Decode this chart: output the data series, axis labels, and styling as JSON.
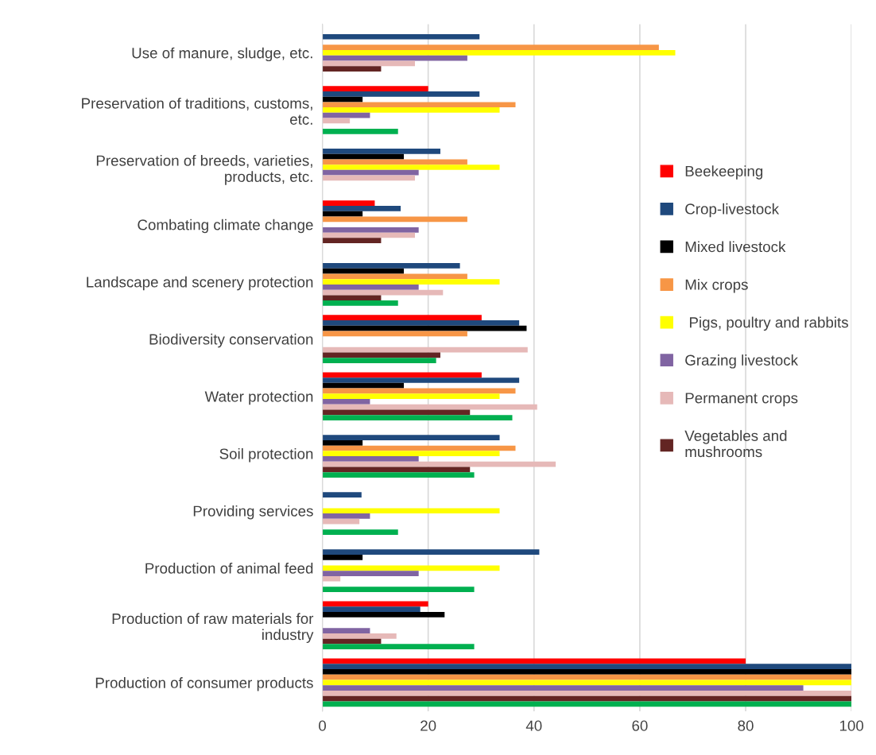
{
  "chart_data": {
    "type": "bar",
    "orientation": "horizontal",
    "categories": [
      "Use of manure, sludge, etc.",
      "Preservation of traditions, customs,\netc.",
      "Preservation of breeds, varieties,\nproducts, etc.",
      "Combating climate change",
      "Landscape and scenery protection",
      "Biodiversity conservation",
      "Water protection",
      "Soil protection",
      "Providing services",
      "Production of animal feed",
      "Production of raw materials for\nindustry",
      "Production of consumer products"
    ],
    "series": [
      {
        "name": "Beekeeping",
        "color": "#ff0000",
        "values": [
          null,
          20,
          null,
          9.9,
          null,
          30.1,
          30.1,
          null,
          null,
          null,
          20,
          80
        ]
      },
      {
        "name": "Crop-livestock",
        "color": "#1f497d",
        "values": [
          29.7,
          29.7,
          22.3,
          14.8,
          26.0,
          37.2,
          37.2,
          33.5,
          7.4,
          41.0,
          18.5,
          100
        ]
      },
      {
        "name": "Mixed livestock",
        "color": "#000000",
        "values": [
          null,
          7.6,
          15.4,
          7.6,
          15.4,
          38.6,
          15.4,
          7.6,
          null,
          7.6,
          23.1,
          100
        ]
      },
      {
        "name": "Mix crops",
        "color": "#f79646",
        "values": [
          63.6,
          36.5,
          27.4,
          27.4,
          27.4,
          27.4,
          36.5,
          36.5,
          null,
          null,
          null,
          100
        ]
      },
      {
        "name": " Pigs, poultry and rabbits",
        "color": "#ffff00",
        "values": [
          66.7,
          33.5,
          33.5,
          null,
          33.5,
          null,
          33.5,
          33.5,
          33.5,
          33.5,
          null,
          100
        ]
      },
      {
        "name": "Grazing livestock",
        "color": "#8064a2",
        "values": [
          27.4,
          9.0,
          18.2,
          18.2,
          18.2,
          null,
          9.0,
          18.2,
          9.0,
          18.2,
          9.0,
          90.9
        ]
      },
      {
        "name": "Permanent crops",
        "color": "#e6b9b8",
        "values": [
          17.5,
          5.2,
          17.5,
          17.5,
          22.8,
          38.8,
          40.6,
          44.1,
          7.0,
          3.4,
          14.0,
          100
        ]
      },
      {
        "name": "Vegetables and\nmushrooms",
        "color": "#632523",
        "values": [
          11.1,
          null,
          null,
          11.1,
          11.1,
          22.3,
          27.9,
          27.9,
          null,
          null,
          11.1,
          100
        ]
      },
      {
        "color": "#00b050",
        "values": [
          null,
          14.3,
          null,
          null,
          14.3,
          21.5,
          35.9,
          28.7,
          14.3,
          28.7,
          28.7,
          100
        ]
      }
    ],
    "xlim": [
      0,
      100
    ],
    "xticks": [
      0,
      20,
      40,
      60,
      80,
      100
    ],
    "grid": "x",
    "legend": "right"
  }
}
